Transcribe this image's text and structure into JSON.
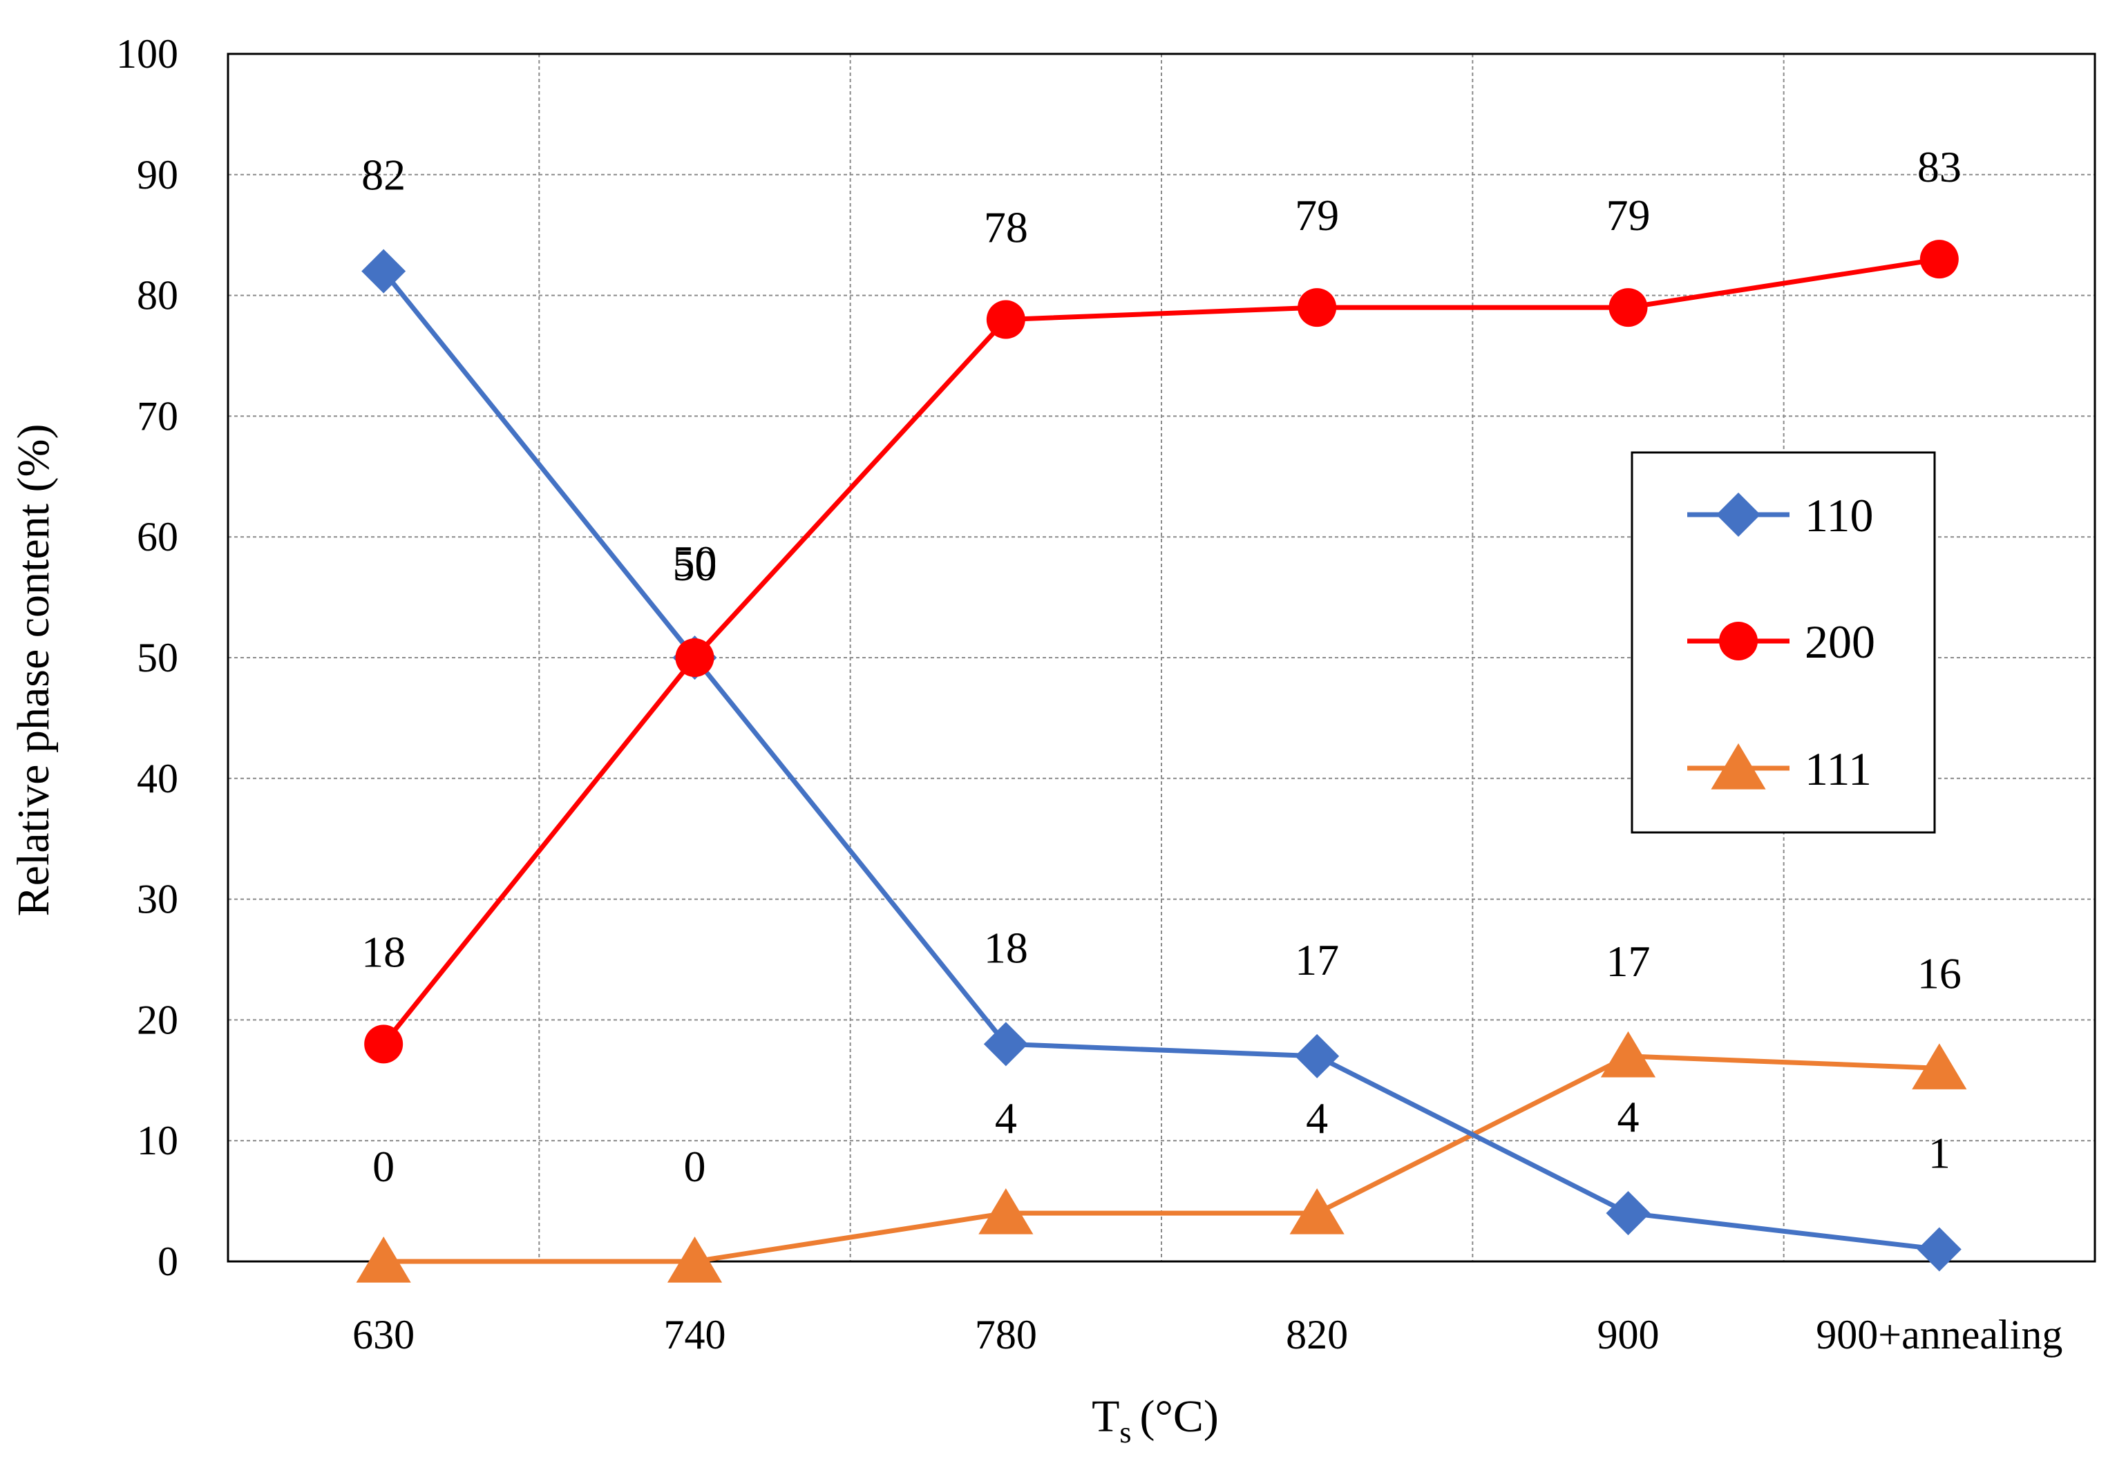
{
  "chart_data": {
    "type": "line",
    "categories": [
      "630",
      "740",
      "780",
      "820",
      "900",
      "900+annealing"
    ],
    "series": [
      {
        "name": "110",
        "marker": "diamond",
        "color": "#4472c4",
        "values": [
          82,
          50,
          18,
          17,
          4,
          1
        ]
      },
      {
        "name": "200",
        "marker": "circle",
        "color": "#ff0000",
        "values": [
          18,
          50,
          78,
          79,
          79,
          83
        ]
      },
      {
        "name": "111",
        "marker": "triangle",
        "color": "#ed7d31",
        "values": [
          0,
          0,
          4,
          4,
          17,
          16
        ]
      }
    ],
    "title": "",
    "xlabel": {
      "main": "T",
      "subscript": "s",
      "unit": "(°C)"
    },
    "ylabel": "Relative phase content (%)",
    "ylim": [
      0,
      100
    ],
    "yticks": [
      0,
      10,
      20,
      30,
      40,
      50,
      60,
      70,
      80,
      90,
      100
    ],
    "grid": true,
    "legend_position": "right"
  }
}
